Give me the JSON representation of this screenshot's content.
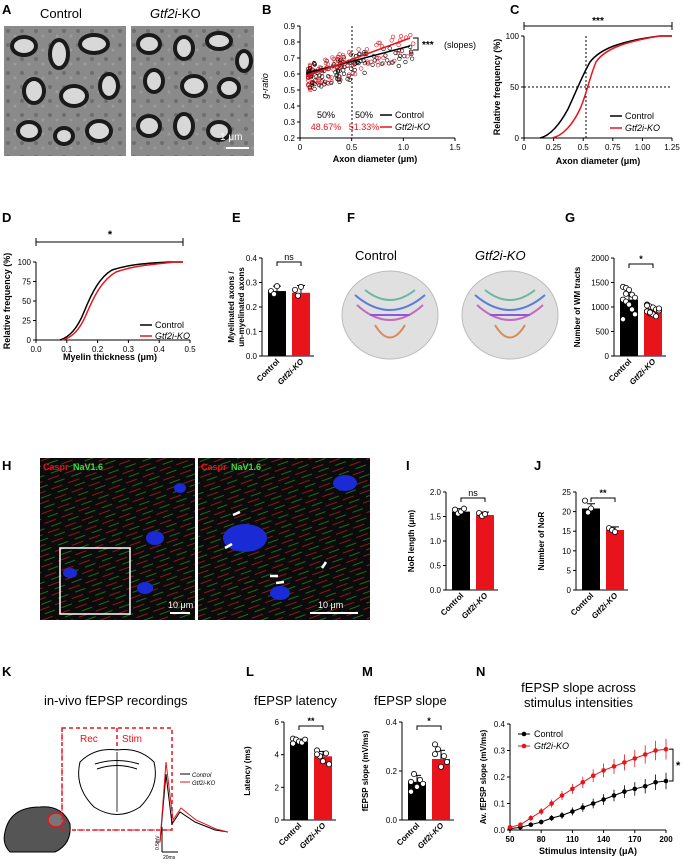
{
  "panels": {
    "A": {
      "letter": "A",
      "label_control": "Control",
      "label_ko": "Gtf2i",
      "label_ko_suffix": "-KO",
      "scalebar": "1 μm"
    },
    "B": {
      "letter": "B",
      "ylabel": "g-ratio",
      "xlabel": "Axon diameter (μm)",
      "pct_left": "50%",
      "pct_left_ko": "48.67%",
      "pct_right": "50%",
      "pct_right_ko": "51.33%",
      "sig": "***",
      "sig_note": "(slopes)",
      "legend_control": "Control",
      "legend_ko": "Gtf2i-KO",
      "yticks": [
        "0.2",
        "0.3",
        "0.4",
        "0.5",
        "0.6",
        "0.7",
        "0.8",
        "0.9"
      ],
      "xticks": [
        "0",
        "0.5",
        "1.0",
        "1.5"
      ]
    },
    "C": {
      "letter": "C",
      "ylabel": "Relative frequency (%)",
      "xlabel": "Axon diameter (μm)",
      "sig": "***",
      "legend_control": "Control",
      "legend_ko": "Gtf2i-KO",
      "yticks": [
        "0",
        "50",
        "100"
      ],
      "xticks": [
        "0",
        "0.25",
        "0.5",
        "0.75",
        "1.00",
        "1.25"
      ]
    },
    "D": {
      "letter": "D",
      "ylabel": "Relative frequency (%)",
      "xlabel": "Myelin thickness (μm)",
      "sig": "*",
      "legend_control": "Control",
      "legend_ko": "Gtf2i-KO",
      "yticks": [
        "0",
        "25",
        "50",
        "75",
        "100"
      ],
      "xticks": [
        "0.0",
        "0.1",
        "0.2",
        "0.3",
        "0.4",
        "0.5"
      ]
    },
    "E": {
      "letter": "E",
      "ylabel": "Myelinated axons / un-myelinated axons",
      "sig": "ns",
      "yticks": [
        "0.0",
        "0.1",
        "0.2",
        "0.3",
        "0.4"
      ],
      "x_control": "Control",
      "x_ko": "Gtf2i-KO"
    },
    "F": {
      "letter": "F",
      "label_control": "Control",
      "label_ko": "Gtf2i-KO"
    },
    "G": {
      "letter": "G",
      "ylabel": "Number of WM tracts",
      "sig": "*",
      "yticks": [
        "0",
        "500",
        "1000",
        "1500",
        "2000"
      ],
      "x_control": "Control",
      "x_ko": "Gtf2i-KO"
    },
    "H": {
      "letter": "H",
      "stain1": "Caspr",
      "stain2": "NaV1.6",
      "scalebar": "10 μm"
    },
    "I": {
      "letter": "I",
      "ylabel": "NoR length (μm)",
      "sig": "ns",
      "yticks": [
        "0.0",
        "0.5",
        "1.0",
        "1.5",
        "2.0"
      ],
      "x_control": "Control",
      "x_ko": "Gtf2i-KO"
    },
    "J": {
      "letter": "J",
      "ylabel": "Number of NoR",
      "sig": "**",
      "yticks": [
        "0",
        "5",
        "10",
        "15",
        "20",
        "25"
      ],
      "x_control": "Control",
      "x_ko": "Gtf2i-KO"
    },
    "K": {
      "letter": "K",
      "title": "in-vivo fEPSP recordings",
      "rec": "Rec",
      "stim": "Stim",
      "trace_control": "Control",
      "trace_ko": "Gtf2i-KO",
      "scale_v": "0.5mV",
      "scale_t": "20ms"
    },
    "L": {
      "letter": "L",
      "title": "fEPSP latency",
      "ylabel": "Latency (ms)",
      "sig": "**",
      "yticks": [
        "0",
        "2",
        "4",
        "6"
      ],
      "x_control": "Control",
      "x_ko": "Gtf2i-KO"
    },
    "M": {
      "letter": "M",
      "title": "fEPSP slope",
      "ylabel": "fEPSP slope (mV/ms)",
      "sig": "*",
      "yticks": [
        "0.0",
        "0.2",
        "0.4"
      ],
      "x_control": "Control",
      "x_ko": "Gtf2i-KO"
    },
    "N": {
      "letter": "N",
      "title1": "fEPSP slope across",
      "title2": "stimulus intensities",
      "ylabel": "Av. fEPSP slope (mV/ms)",
      "xlabel": "Stimulus intensity (μA)",
      "sig": "*",
      "legend_control": "Control",
      "legend_ko": "Gtf2i-KO",
      "yticks": [
        "0.0",
        "0.1",
        "0.2",
        "0.3",
        "0.4"
      ],
      "xticks": [
        "50",
        "80",
        "110",
        "140",
        "170",
        "200"
      ]
    }
  },
  "colors": {
    "control": "#000000",
    "ko": "#e8131b",
    "blue_nuclei": "#1a2bd6",
    "green": "#3adf3a"
  },
  "chart_data": [
    {
      "id": "E",
      "type": "bar",
      "categories": [
        "Control",
        "Gtf2i-KO"
      ],
      "values": [
        0.265,
        0.258
      ],
      "errors": [
        0.02,
        0.03
      ],
      "ylim": [
        0,
        0.4
      ]
    },
    {
      "id": "G",
      "type": "bar",
      "categories": [
        "Control",
        "Gtf2i-KO"
      ],
      "values": [
        1150,
        950
      ],
      "errors": [
        80,
        50
      ],
      "ylim": [
        0,
        2000
      ]
    },
    {
      "id": "I",
      "type": "bar",
      "categories": [
        "Control",
        "Gtf2i-KO"
      ],
      "values": [
        1.6,
        1.53
      ],
      "errors": [
        0.06,
        0.06
      ],
      "ylim": [
        0,
        2.0
      ]
    },
    {
      "id": "J",
      "type": "bar",
      "categories": [
        "Control",
        "Gtf2i-KO"
      ],
      "values": [
        20.8,
        15.3
      ],
      "errors": [
        1.2,
        0.8
      ],
      "ylim": [
        0,
        25
      ]
    },
    {
      "id": "L",
      "type": "bar",
      "categories": [
        "Control",
        "Gtf2i-KO"
      ],
      "values": [
        4.8,
        3.9
      ],
      "errors": [
        0.15,
        0.3
      ],
      "ylim": [
        0,
        6
      ]
    },
    {
      "id": "M",
      "type": "bar",
      "categories": [
        "Control",
        "Gtf2i-KO"
      ],
      "values": [
        0.175,
        0.28
      ],
      "errors": [
        0.03,
        0.04
      ],
      "ylim": [
        0,
        0.45
      ]
    },
    {
      "id": "N",
      "type": "line",
      "x": [
        50,
        60,
        70,
        80,
        90,
        100,
        110,
        120,
        130,
        140,
        150,
        160,
        170,
        180,
        190,
        200
      ],
      "series": [
        {
          "name": "Control",
          "values": [
            0.005,
            0.01,
            0.02,
            0.03,
            0.045,
            0.055,
            0.07,
            0.085,
            0.1,
            0.115,
            0.13,
            0.145,
            0.155,
            0.165,
            0.18,
            0.185
          ]
        },
        {
          "name": "Gtf2i-KO",
          "values": [
            0.01,
            0.02,
            0.045,
            0.07,
            0.1,
            0.13,
            0.155,
            0.18,
            0.205,
            0.225,
            0.24,
            0.255,
            0.27,
            0.285,
            0.3,
            0.305
          ]
        }
      ],
      "xlim": [
        50,
        200
      ],
      "ylim": [
        0,
        0.4
      ]
    }
  ]
}
